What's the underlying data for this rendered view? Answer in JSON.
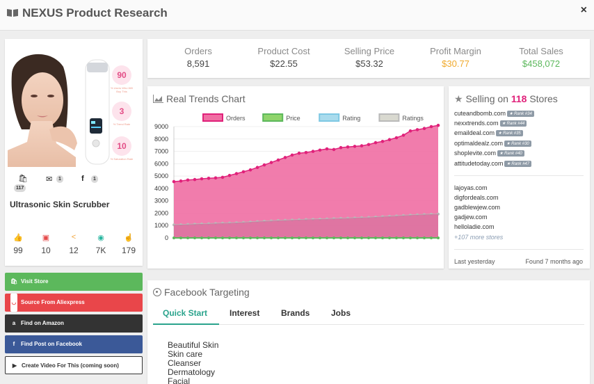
{
  "app": {
    "title": "NEXUS Product Research",
    "close_label": "×"
  },
  "product": {
    "name": "Ultrasonic Skin Scrubber",
    "percentages": [
      {
        "value": "90",
        "caption": "% Users Who Will Buy This"
      },
      {
        "value": "3",
        "caption": "% Trend Rate"
      },
      {
        "value": "10",
        "caption": "% Saturation Rate"
      }
    ],
    "store_counts": [
      {
        "icon": "shopify-icon",
        "count": "117"
      },
      {
        "icon": "email-icon",
        "count": "1"
      },
      {
        "icon": "facebook-icon",
        "count": "1"
      }
    ],
    "engagement": [
      {
        "icon": "like-icon",
        "value": "99",
        "color": "#7cc242"
      },
      {
        "icon": "comment-icon",
        "value": "10",
        "color": "#e54b4b"
      },
      {
        "icon": "share-icon",
        "value": "12",
        "color": "#f0a43b"
      },
      {
        "icon": "view-icon",
        "value": "7K",
        "color": "#29b6a0"
      },
      {
        "icon": "click-icon",
        "value": "179",
        "color": "#555555"
      }
    ]
  },
  "stats": [
    {
      "label": "Orders",
      "value": "8,591",
      "color": "#444444"
    },
    {
      "label": "Product Cost",
      "value": "$22.55",
      "color": "#444444"
    },
    {
      "label": "Selling Price",
      "value": "$53.32",
      "color": "#444444"
    },
    {
      "label": "Profit Margin",
      "value": "$30.77",
      "color": "#f0a92b"
    },
    {
      "label": "Total Sales",
      "value": "$458,072",
      "color": "#5cb85c"
    }
  ],
  "chart_title": "Real Trends Chart",
  "chart_data": {
    "type": "area",
    "title": "",
    "ylim": [
      0,
      9000
    ],
    "y_ticks": [
      "0",
      "1000",
      "2000",
      "3000",
      "4000",
      "5000",
      "6000",
      "7000",
      "8000",
      "9000"
    ],
    "legend_placement": "top",
    "series": [
      {
        "name": "Orders",
        "color": "#e0217a",
        "fill": "#f06ea3",
        "values": [
          4550,
          4600,
          4680,
          4720,
          4780,
          4820,
          4850,
          4900,
          5050,
          5200,
          5350,
          5500,
          5700,
          5900,
          6100,
          6300,
          6500,
          6700,
          6850,
          6900,
          7000,
          7100,
          7200,
          7150,
          7300,
          7350,
          7400,
          7450,
          7550,
          7700,
          7800,
          7950,
          8100,
          8300,
          8650,
          8750,
          8850,
          9000,
          9100
        ]
      },
      {
        "name": "Price",
        "color": "#5cb85c",
        "fill": "#8fd46b",
        "values": [
          0,
          0,
          0,
          0,
          0,
          0,
          0,
          0,
          0,
          0,
          0,
          0,
          0,
          0,
          0,
          0,
          0,
          0,
          0,
          0,
          0,
          0,
          0,
          0,
          0,
          0,
          0,
          0,
          0,
          0,
          0,
          0,
          0,
          0,
          0,
          0,
          0,
          0,
          0
        ]
      },
      {
        "name": "Rating",
        "color": "#7ec8e3",
        "fill": "#a9dbed",
        "values": []
      },
      {
        "name": "Ratings",
        "color": "#b9b9b9",
        "fill": "#d9d9d0",
        "values": [
          1050,
          1070,
          1090,
          1110,
          1130,
          1150,
          1170,
          1190,
          1210,
          1230,
          1260,
          1290,
          1320,
          1350,
          1380,
          1410,
          1430,
          1450,
          1470,
          1490,
          1500,
          1520,
          1540,
          1560,
          1580,
          1600,
          1620,
          1640,
          1660,
          1690,
          1720,
          1750,
          1780,
          1810,
          1840,
          1870,
          1890,
          1910,
          1930
        ]
      }
    ]
  },
  "stores": {
    "title_prefix": "Selling on",
    "count": "118",
    "title_suffix": "Stores",
    "ranked": [
      {
        "domain": "cuteandbomb.com",
        "rank": "★ Rank #34"
      },
      {
        "domain": "nexxtrends.com",
        "rank": "★ Rank #44"
      },
      {
        "domain": "emaildeal.com",
        "rank": "★ Rank #35"
      },
      {
        "domain": "optimaldealz.com",
        "rank": "★ Rank #30"
      },
      {
        "domain": "shoplevite.com",
        "rank": "★ Rank #40"
      },
      {
        "domain": "attitudetoday.com",
        "rank": "★ Rank #47"
      }
    ],
    "plain": [
      "lajoyas.com",
      "digfordeals.com",
      "gadblewjew.com",
      "gadjew.com",
      "helloladie.com"
    ],
    "more": "+107 more stores",
    "last": "Last yesterday",
    "found": "Found 7 months ago"
  },
  "actions": [
    {
      "label": "Visit Store",
      "icon": "shopify-bag-icon",
      "color": "#5cb85c"
    },
    {
      "label": "Source From Aliexpress",
      "icon": "aliexpress-icon",
      "color": "#e9464a"
    },
    {
      "label": "Find on Amazon",
      "icon": "amazon-icon",
      "color": "#333333"
    },
    {
      "label": "Find Post on Facebook",
      "icon": "facebook-icon",
      "color": "#3b5998"
    },
    {
      "label": "Create Video For This (coming soon)",
      "icon": "video-icon",
      "color": "#ffffff"
    }
  ],
  "facebook": {
    "title": "Facebook Targeting",
    "tabs": [
      "Quick Start",
      "Interest",
      "Brands",
      "Jobs"
    ],
    "keywords": [
      "Beautiful Skin",
      "Skin care",
      "Cleanser",
      "Dermatology",
      "Facial"
    ]
  }
}
